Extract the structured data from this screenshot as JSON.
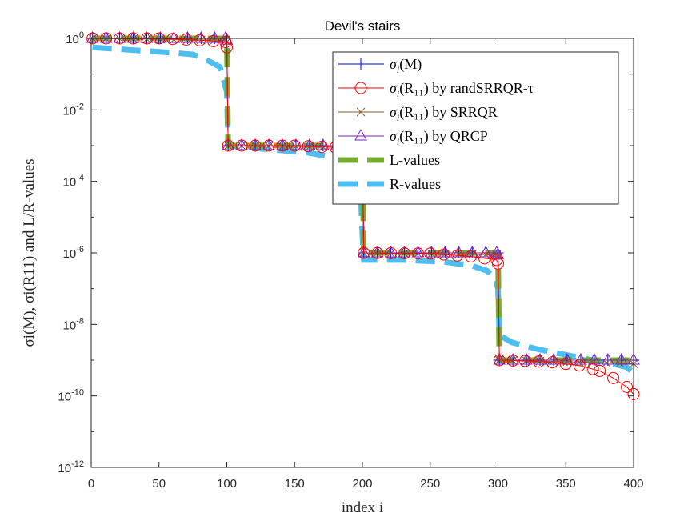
{
  "chart_data": {
    "type": "line",
    "title": "Devil's stairs",
    "xlabel": "index i",
    "ylabel": "σi(M), σi(R11) and L/R-values",
    "xscale": "linear",
    "yscale": "log",
    "xlim": [
      0,
      400
    ],
    "ylim_exponent": [
      -12,
      0
    ],
    "grid": false,
    "legend_position": "top-right",
    "x_ticks": [
      0,
      50,
      100,
      150,
      200,
      250,
      300,
      350,
      400
    ],
    "y_ticks": [
      {
        "exp": 0,
        "base": "10",
        "sup": "0"
      },
      {
        "exp": -2,
        "base": "10",
        "sup": "-2"
      },
      {
        "exp": -4,
        "base": "10",
        "sup": "-4"
      },
      {
        "exp": -6,
        "base": "10",
        "sup": "-6"
      },
      {
        "exp": -8,
        "base": "10",
        "sup": "-8"
      },
      {
        "exp": -10,
        "base": "10",
        "sup": "-10"
      },
      {
        "exp": -12,
        "base": "10",
        "sup": "-12"
      }
    ],
    "series": [
      {
        "name": "σi(M)",
        "legend": {
          "prefix": "σ",
          "sub": "i",
          "rest": "(M)"
        },
        "color": "#0000ff",
        "marker": "plus",
        "x": [
          1,
          100,
          101,
          200,
          201,
          300,
          301,
          400
        ],
        "log10y": [
          0,
          0,
          -3,
          -3,
          -6,
          -6,
          -9,
          -9
        ]
      },
      {
        "name": "σi(R11) by randSRRQR-τ",
        "legend": {
          "prefix": "σ",
          "sub": "i",
          "rest": "(R₁₁) by randSRRQR-τ"
        },
        "color": "#ff0000",
        "marker": "circle",
        "x": [
          1,
          50,
          80,
          99,
          100,
          101,
          150,
          180,
          199,
          200,
          201,
          250,
          280,
          299,
          300,
          301,
          320,
          340,
          360,
          375,
          385,
          395,
          400
        ],
        "log10y": [
          0,
          0,
          -0.05,
          -0.1,
          -0.25,
          -3,
          -3,
          -3.05,
          -3.15,
          -3.3,
          -6,
          -6.02,
          -6.1,
          -6.2,
          -6.3,
          -9,
          -9.02,
          -9.06,
          -9.15,
          -9.3,
          -9.5,
          -9.75,
          -9.95
        ]
      },
      {
        "name": "σi(R11) by SRRQR",
        "legend": {
          "prefix": "σ",
          "sub": "i",
          "rest": "(R₁₁) by SRRQR"
        },
        "color": "#8b5a2b",
        "marker": "x",
        "x": [
          1,
          99,
          100,
          101,
          199,
          200,
          201,
          299,
          300,
          301,
          360,
          400
        ],
        "log10y": [
          0,
          -0.05,
          -0.1,
          -3,
          -3.05,
          -3.1,
          -6,
          -6.05,
          -6.1,
          -9,
          -9.05,
          -9.1
        ]
      },
      {
        "name": "σi(R11) by QRCP",
        "legend": {
          "prefix": "σ",
          "sub": "i",
          "rest": "(R₁₁) by QRCP"
        },
        "color": "#7e1fbf",
        "marker": "triangle",
        "x": [
          1,
          99,
          100,
          101,
          199,
          200,
          201,
          299,
          300,
          301,
          400
        ],
        "log10y": [
          0,
          0,
          -0.05,
          -3,
          -3,
          -3.05,
          -6,
          -6,
          -6.05,
          -9,
          -9
        ]
      },
      {
        "name": "L-values",
        "legend": {
          "prefix": "",
          "sub": "",
          "rest": "L-values"
        },
        "color": "#77ac30",
        "marker": "none",
        "dash": true,
        "x": [
          1,
          100,
          101,
          200,
          201,
          300,
          301,
          400
        ],
        "log10y": [
          0,
          0,
          -3,
          -3,
          -6,
          -6,
          -9,
          -9
        ]
      },
      {
        "name": "R-values",
        "legend": {
          "prefix": "",
          "sub": "",
          "rest": "R-values"
        },
        "color": "#4dbeee",
        "marker": "none",
        "dash": true,
        "x": [
          1,
          20,
          40,
          60,
          75,
          85,
          95,
          100,
          101,
          130,
          160,
          175,
          190,
          198,
          200,
          201,
          230,
          260,
          280,
          292,
          298,
          300,
          301,
          310,
          330,
          350,
          370,
          385,
          395,
          400
        ],
        "log10y": [
          -0.25,
          -0.3,
          -0.35,
          -0.4,
          -0.45,
          -0.6,
          -0.8,
          -1.5,
          -3,
          -3.1,
          -3.2,
          -3.3,
          -3.4,
          -3.6,
          -5.5,
          -6.2,
          -6.2,
          -6.25,
          -6.35,
          -6.5,
          -6.7,
          -7,
          -8.3,
          -8.5,
          -8.7,
          -8.85,
          -9,
          -9.1,
          -9.2,
          -9.35
        ]
      }
    ]
  }
}
